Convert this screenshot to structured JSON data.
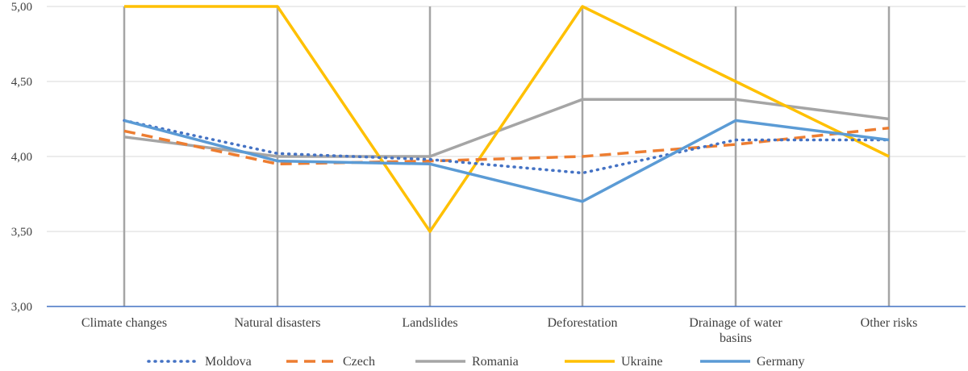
{
  "chart_data": {
    "type": "line",
    "categories": [
      [
        "Climate changes"
      ],
      [
        "Natural disasters"
      ],
      [
        "Landslides"
      ],
      [
        "Deforestation"
      ],
      [
        "Drainage of water",
        "basins"
      ],
      [
        "Other risks"
      ]
    ],
    "ylim": [
      3.0,
      5.0
    ],
    "yticks": [
      "3,00",
      "3,50",
      "4,00",
      "4,50",
      "5,00"
    ],
    "ytick_values": [
      3.0,
      3.5,
      4.0,
      4.5,
      5.0
    ],
    "grid": true,
    "legend_position": "bottom",
    "series": [
      {
        "name": "Moldova",
        "values": [
          4.24,
          4.02,
          3.98,
          3.89,
          4.11,
          4.11
        ],
        "color": "#4472c4",
        "style": "dotted"
      },
      {
        "name": "Czech",
        "values": [
          4.17,
          3.95,
          3.97,
          4.0,
          4.08,
          4.19
        ],
        "color": "#ed7d31",
        "style": "dashed"
      },
      {
        "name": "Romania",
        "values": [
          4.13,
          4.0,
          4.0,
          4.38,
          4.38,
          4.25
        ],
        "color": "#a5a5a5",
        "style": "solid"
      },
      {
        "name": "Ukraine",
        "values": [
          5.0,
          5.0,
          3.5,
          5.0,
          4.5,
          4.0
        ],
        "color": "#ffc000",
        "style": "solid"
      },
      {
        "name": "Germany",
        "values": [
          4.24,
          3.97,
          3.95,
          3.7,
          4.24,
          4.11
        ],
        "color": "#5b9bd5",
        "style": "solid"
      }
    ],
    "drop_line_color": "#a5a5a5",
    "axis_line_color": "#4472c4",
    "grid_color": "#d9d9d9"
  }
}
